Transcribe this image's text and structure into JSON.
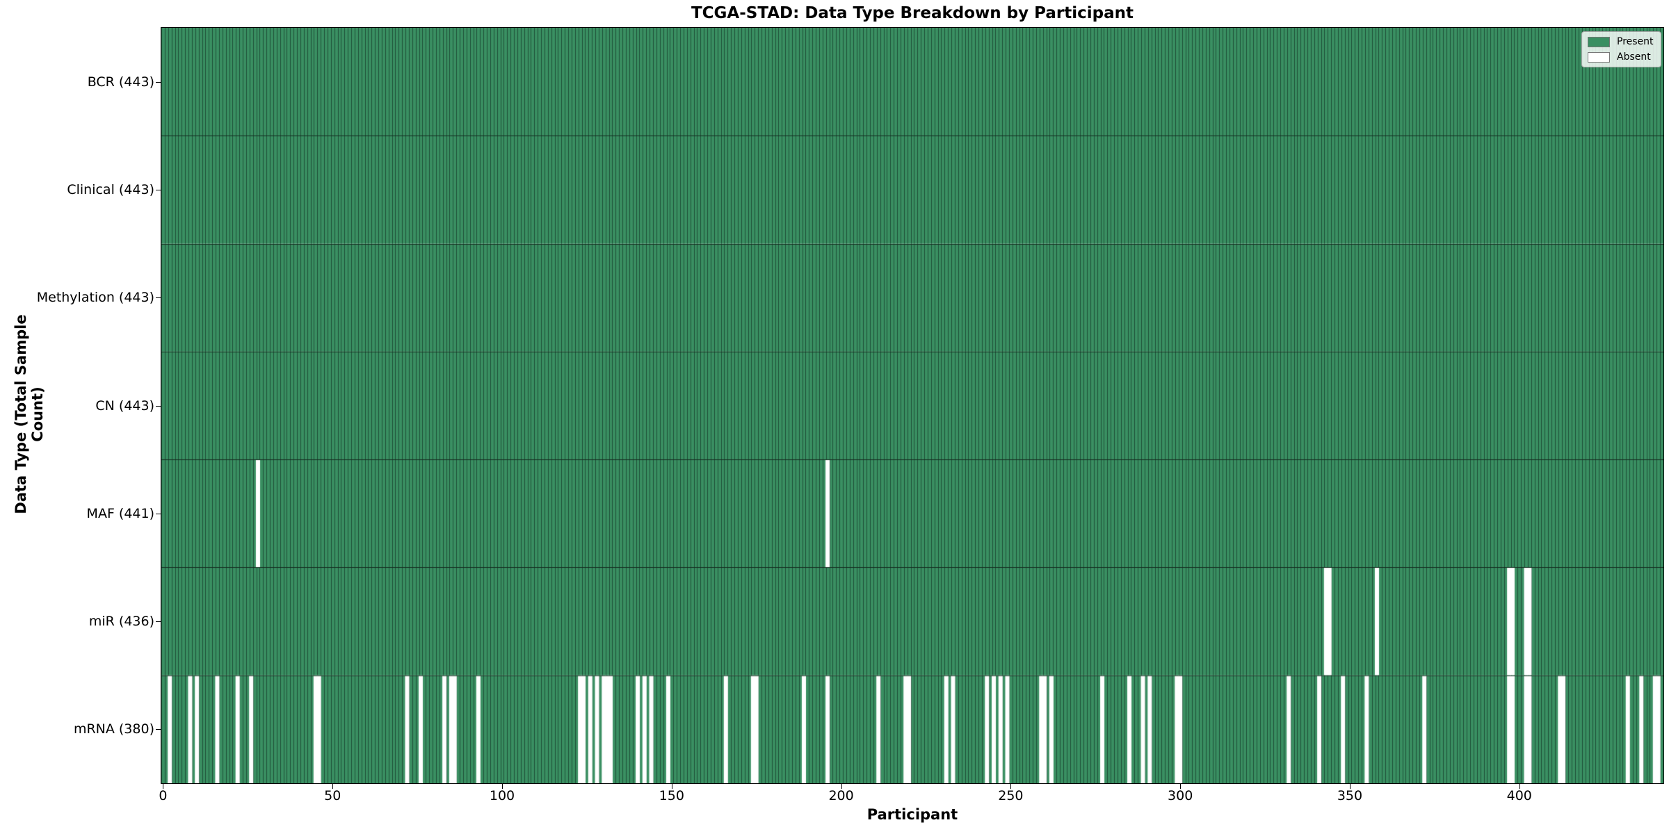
{
  "title": "TCGA-STAD: Data Type Breakdown by Participant",
  "xlabel": "Participant",
  "ylabel": "Data Type (Total Sample Count)",
  "legend": [
    {
      "label": "Present",
      "color": "#3a8f62"
    },
    {
      "label": "Absent",
      "color": "#ffffff"
    }
  ],
  "chart_data": {
    "type": "heatmap",
    "title": "TCGA-STAD: Data Type Breakdown by Participant",
    "xlabel": "Participant",
    "ylabel": "Data Type (Total Sample Count)",
    "n_participants": 443,
    "x_range": [
      -0.5,
      442.5
    ],
    "x_ticks": [
      0,
      50,
      100,
      150,
      200,
      250,
      300,
      350,
      400
    ],
    "legend_position": "upper right",
    "grid": false,
    "colors": {
      "present": "#3a8f62",
      "absent": "#ffffff",
      "bar_edge": "#1e5038",
      "row_border": "#142c1e"
    },
    "rows": [
      {
        "name": "BCR",
        "count": 443,
        "absent": []
      },
      {
        "name": "Clinical",
        "count": 443,
        "absent": []
      },
      {
        "name": "Methylation",
        "count": 443,
        "absent": []
      },
      {
        "name": "CN",
        "count": 443,
        "absent": []
      },
      {
        "name": "MAF",
        "count": 441,
        "absent": [
          28,
          196
        ]
      },
      {
        "name": "miR",
        "count": 436,
        "absent": [
          343,
          344,
          358,
          397,
          398,
          402,
          403
        ]
      },
      {
        "name": "mRNA",
        "count": 380,
        "absent": [
          2,
          8,
          10,
          16,
          22,
          26,
          45,
          46,
          72,
          76,
          83,
          85,
          86,
          93,
          123,
          124,
          126,
          128,
          130,
          131,
          132,
          140,
          142,
          144,
          149,
          166,
          174,
          175,
          189,
          196,
          211,
          219,
          220,
          231,
          233,
          243,
          245,
          247,
          249,
          259,
          260,
          262,
          277,
          285,
          289,
          291,
          299,
          300,
          332,
          341,
          348,
          355,
          372,
          397,
          398,
          402,
          403,
          412,
          413,
          432,
          436,
          440,
          441
        ]
      }
    ]
  }
}
